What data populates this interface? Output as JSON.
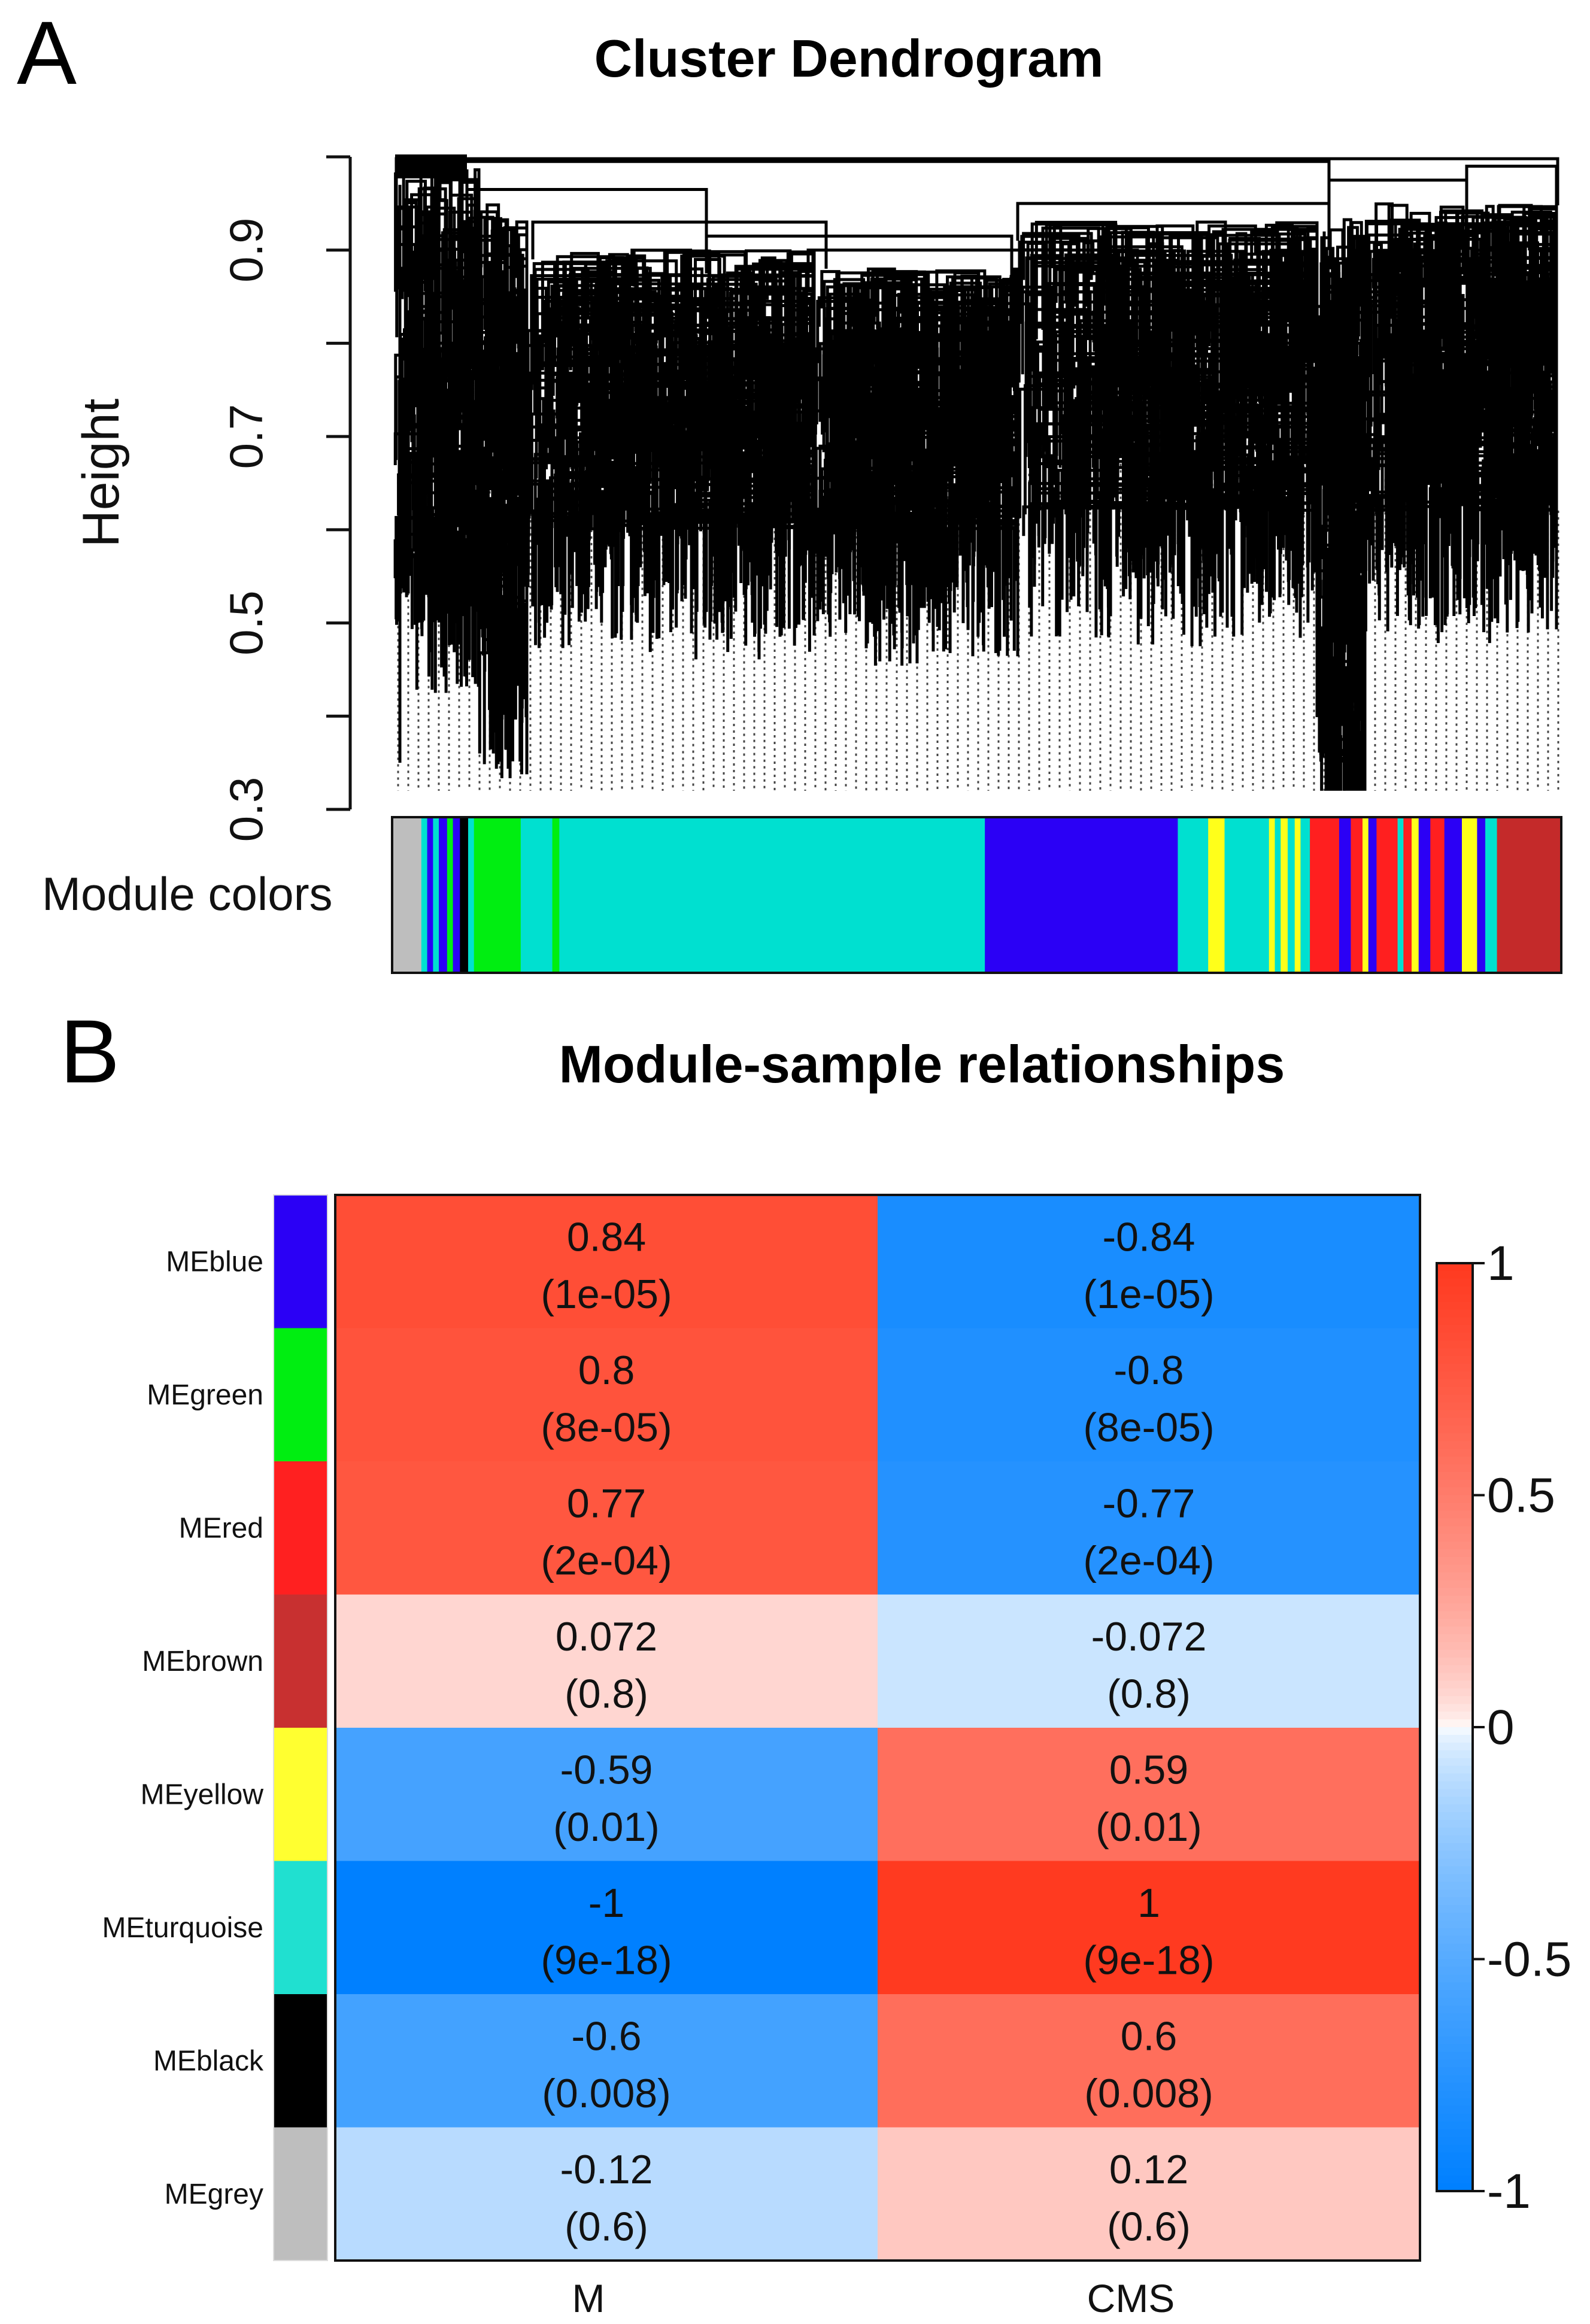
{
  "panel_a_letter": "A",
  "panel_b_letter": "B",
  "chart_data": [
    {
      "type": "dendrogram",
      "title": "Cluster Dendrogram",
      "ylabel": "Height",
      "ylim": [
        0.3,
        1.0
      ],
      "yticks": [
        "0.3",
        "0.5",
        "0.7",
        "0.9"
      ],
      "color_bar_label": "Module colors",
      "module_order": [
        "grey",
        "turquoise",
        "blue",
        "black",
        "green",
        "turquoise",
        "yellow",
        "red",
        "brown"
      ],
      "colors": {
        "grey": "#bebebe",
        "turquoise": "#00e0d0",
        "blue": "#2b00f5",
        "green": "#00ee11",
        "black": "#000000",
        "yellow": "#ffff1a",
        "red": "#ff1f1f",
        "brown": "#c42a2a"
      }
    },
    {
      "type": "heatmap",
      "title": "Module-sample relationships",
      "columns": [
        "M",
        "CMS"
      ],
      "rows": [
        {
          "name": "MEblue",
          "color": "#2b00f5",
          "values": [
            0.84,
            -0.84
          ],
          "labels": [
            "0.84",
            "-0.84"
          ],
          "pvalues": [
            "(1e-05)",
            "(1e-05)"
          ]
        },
        {
          "name": "MEgreen",
          "color": "#00ee11",
          "values": [
            0.8,
            -0.8
          ],
          "labels": [
            "0.8",
            "-0.8"
          ],
          "pvalues": [
            "(8e-05)",
            "(8e-05)"
          ]
        },
        {
          "name": "MEred",
          "color": "#ff2020",
          "values": [
            0.77,
            -0.77
          ],
          "labels": [
            "0.77",
            "-0.77"
          ],
          "pvalues": [
            "(2e-04)",
            "(2e-04)"
          ]
        },
        {
          "name": "MEbrown",
          "color": "#c83030",
          "values": [
            0.072,
            -0.072
          ],
          "labels": [
            "0.072",
            "-0.072"
          ],
          "pvalues": [
            "(0.8)",
            "(0.8)"
          ]
        },
        {
          "name": "MEyellow",
          "color": "#ffff30",
          "values": [
            -0.59,
            0.59
          ],
          "labels": [
            "-0.59",
            "0.59"
          ],
          "pvalues": [
            "(0.01)",
            "(0.01)"
          ]
        },
        {
          "name": "MEturquoise",
          "color": "#20e0d0",
          "values": [
            -1,
            1
          ],
          "labels": [
            "-1",
            "1"
          ],
          "pvalues": [
            "(9e-18)",
            "(9e-18)"
          ]
        },
        {
          "name": "MEblack",
          "color": "#000000",
          "values": [
            -0.6,
            0.6
          ],
          "labels": [
            "-0.6",
            "0.6"
          ],
          "pvalues": [
            "(0.008)",
            "(0.008)"
          ]
        },
        {
          "name": "MEgrey",
          "color": "#bebebe",
          "values": [
            -0.12,
            0.12
          ],
          "labels": [
            "-0.12",
            "0.12"
          ],
          "pvalues": [
            "(0.6)",
            "(0.6)"
          ]
        }
      ],
      "legend": {
        "ticks": [
          "1",
          "0.5",
          "0",
          "-0.5",
          "-1"
        ],
        "range": [
          -1,
          1
        ]
      },
      "colorscale": {
        "negative": "#0080ff",
        "zero": "#ffffff",
        "positive": "#ff3a20"
      }
    }
  ]
}
